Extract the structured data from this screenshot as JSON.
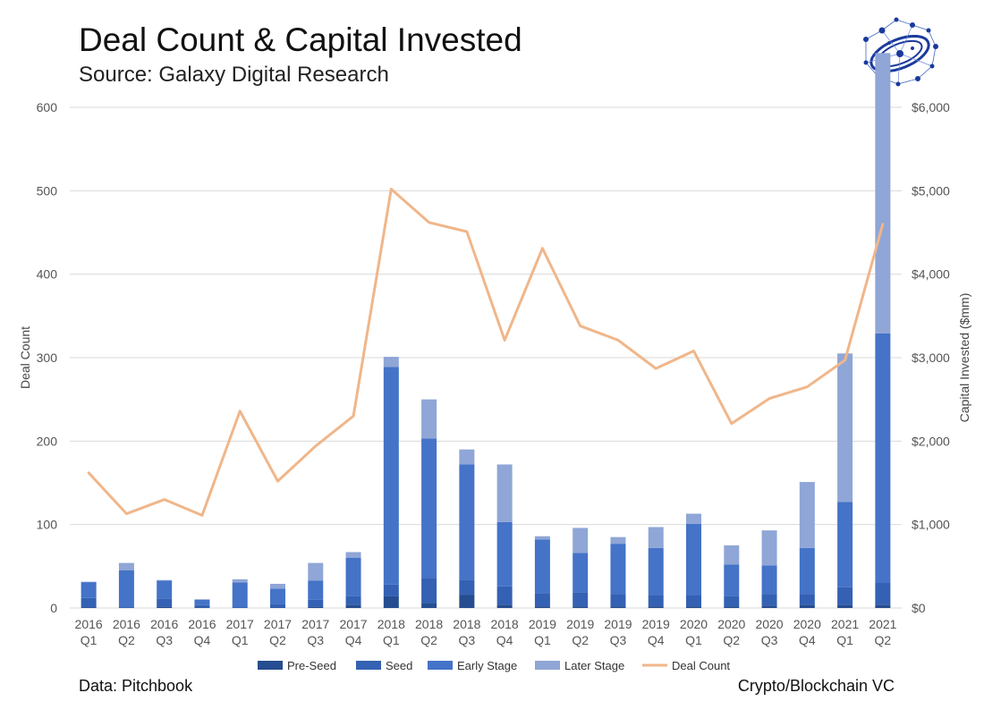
{
  "header": {
    "title": "Deal Count & Capital Invested",
    "subtitle": "Source: Galaxy Digital Research"
  },
  "footer": {
    "left": "Data: Pitchbook",
    "right": "Crypto/Blockchain VC"
  },
  "colors": {
    "pre_seed": "#264d8f",
    "seed": "#3461b3",
    "early_stage": "#4473c8",
    "later_stage": "#8fa6d6",
    "deal_count": "#f0b68a",
    "grid": "#d9d9d9"
  },
  "logo": {
    "icon": "network-orbit-logo-icon"
  },
  "chart_data": {
    "type": "bar",
    "stacked": true,
    "categories": [
      [
        "2016",
        "Q1"
      ],
      [
        "2016",
        "Q2"
      ],
      [
        "2016",
        "Q3"
      ],
      [
        "2016",
        "Q4"
      ],
      [
        "2017",
        "Q1"
      ],
      [
        "2017",
        "Q2"
      ],
      [
        "2017",
        "Q3"
      ],
      [
        "2017",
        "Q4"
      ],
      [
        "2018",
        "Q1"
      ],
      [
        "2018",
        "Q2"
      ],
      [
        "2018",
        "Q3"
      ],
      [
        "2018",
        "Q4"
      ],
      [
        "2019",
        "Q1"
      ],
      [
        "2019",
        "Q2"
      ],
      [
        "2019",
        "Q3"
      ],
      [
        "2019",
        "Q4"
      ],
      [
        "2020",
        "Q1"
      ],
      [
        "2020",
        "Q2"
      ],
      [
        "2020",
        "Q3"
      ],
      [
        "2020",
        "Q4"
      ],
      [
        "2021",
        "Q1"
      ],
      [
        "2021",
        "Q2"
      ]
    ],
    "series": [
      {
        "name": "Pre-Seed",
        "axis": "right",
        "values": [
          10,
          5,
          15,
          5,
          5,
          5,
          15,
          40,
          140,
          60,
          160,
          40,
          20,
          20,
          20,
          20,
          20,
          20,
          30,
          40,
          40,
          40
        ]
      },
      {
        "name": "Seed",
        "axis": "right",
        "values": [
          110,
          5,
          100,
          30,
          0,
          45,
          85,
          100,
          140,
          300,
          180,
          220,
          160,
          170,
          150,
          130,
          130,
          120,
          140,
          130,
          210,
          260
        ]
      },
      {
        "name": "Early Stage",
        "axis": "right",
        "values": [
          190,
          440,
          215,
          65,
          300,
          180,
          230,
          460,
          2610,
          1670,
          1380,
          770,
          640,
          470,
          600,
          570,
          860,
          380,
          340,
          550,
          1020,
          2990
        ]
      },
      {
        "name": "Later Stage",
        "axis": "right",
        "values": [
          5,
          90,
          5,
          5,
          40,
          60,
          210,
          70,
          120,
          470,
          180,
          690,
          40,
          300,
          80,
          250,
          120,
          230,
          420,
          790,
          1780,
          3360
        ]
      },
      {
        "name": "Deal Count",
        "type": "line",
        "axis": "left",
        "values": [
          162,
          113,
          130,
          111,
          236,
          152,
          194,
          230,
          502,
          462,
          451,
          321,
          431,
          338,
          321,
          287,
          308,
          221,
          251,
          265,
          297,
          460
        ]
      }
    ],
    "left_axis": {
      "label": "Deal Count",
      "min": 0,
      "max": 600,
      "ticks": [
        "0",
        "100",
        "200",
        "300",
        "400",
        "500",
        "600"
      ]
    },
    "right_axis": {
      "label": "Capital Invested ($mm)",
      "min": 0,
      "max": 6000,
      "ticks": [
        "$0",
        "$1,000",
        "$2,000",
        "$3,000",
        "$4,000",
        "$5,000",
        "$6,000"
      ]
    },
    "legend": [
      "Pre-Seed",
      "Seed",
      "Early Stage",
      "Later Stage",
      "Deal Count"
    ],
    "legend_position": "bottom"
  }
}
